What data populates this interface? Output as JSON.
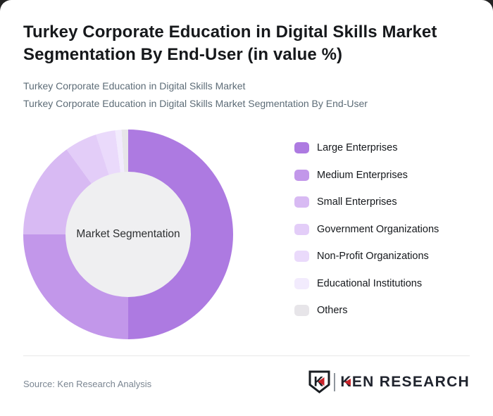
{
  "window": {
    "background": "#232323",
    "card_background": "#ffffff"
  },
  "header": {
    "title_line1": "Turkey Corporate Education in Digital Skills Market",
    "title_line2": "Segmentation By End-User (in value %)",
    "subtitle_line1": "Turkey Corporate Education in Digital Skills Market",
    "subtitle_line2": "Turkey Corporate Education in Digital Skills Market Segmentation By End-User"
  },
  "chart_data": {
    "type": "pie",
    "donut": true,
    "title": "Turkey Corporate Education in Digital Skills Market Segmentation By End-User (in value %)",
    "center_label": "Market Segmentation",
    "unit": "%",
    "categories": [
      "Large Enterprises",
      "Medium Enterprises",
      "Small Enterprises",
      "Government Organizations",
      "Non-Profit Organizations",
      "Educational Institutions",
      "Others"
    ],
    "values": [
      50,
      25,
      15,
      5,
      3,
      1,
      1
    ],
    "colors": [
      "#ad7ae1",
      "#c297ea",
      "#d8baf3",
      "#e3cdf8",
      "#eadafb",
      "#f2ebfd",
      "#e7e5e9"
    ],
    "start_angle_deg": 0,
    "direction": "clockwise",
    "legend_position": "right",
    "inner_hole_color": "#efeff1",
    "center_label_color": "#2d2f31"
  },
  "footer": {
    "source_text": "Source: Ken Research Analysis",
    "logo": {
      "badge_letter": "K",
      "wordmark": "KEN RESEARCH",
      "accent_color": "#c8232a",
      "ink_color": "#20242e"
    }
  }
}
